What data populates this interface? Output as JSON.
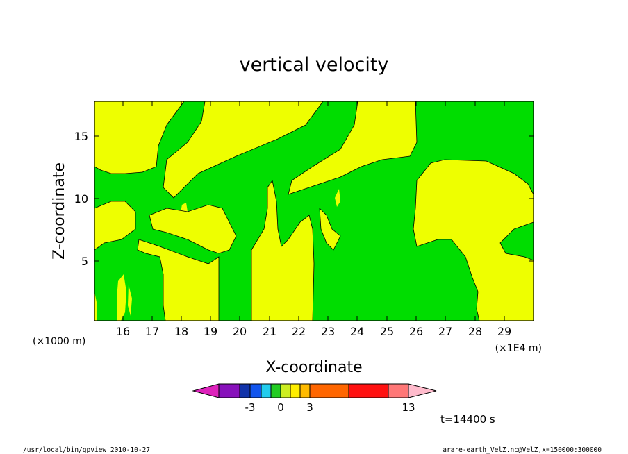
{
  "chart_data": {
    "type": "heatmap",
    "title": "vertical velocity",
    "xlabel": "X-coordinate",
    "ylabel": "Z-coordinate",
    "x_unit_left": "(×1000 m)",
    "x_unit_right": "(×1E4 m)",
    "xlim": [
      15.3,
      30.0
    ],
    "ylim": [
      0.2,
      17.8
    ],
    "x_ticks": [
      "16",
      "17",
      "18",
      "19",
      "20",
      "21",
      "22",
      "23",
      "24",
      "25",
      "26",
      "27",
      "28",
      "29"
    ],
    "y_ticks": [
      "5",
      "10",
      "15"
    ],
    "field_note_colors": {
      "green_level": "0 to 1",
      "yellow_level": "1 to 2"
    },
    "colorbar": {
      "colors": [
        "#dd22bb",
        "#8811bb",
        "#1133aa",
        "#1155ee",
        "#22ccee",
        "#22cc22",
        "#ccee22",
        "#ffee00",
        "#ffbb00",
        "#ff6600",
        "#ff1111",
        "#ff7777",
        "#ffbbcc"
      ],
      "labels": [
        "-3",
        "0",
        "3",
        "13"
      ]
    },
    "colors": {
      "positive_weak": "#eeff00",
      "near_zero": "#00dd00",
      "frame": "#000000"
    }
  },
  "time_label": "t=14400 s",
  "footer": {
    "left": "/usr/local/bin/gpview  2010-10-27",
    "right": "arare-earth_VelZ.nc@VelZ,x=150000:300000"
  }
}
